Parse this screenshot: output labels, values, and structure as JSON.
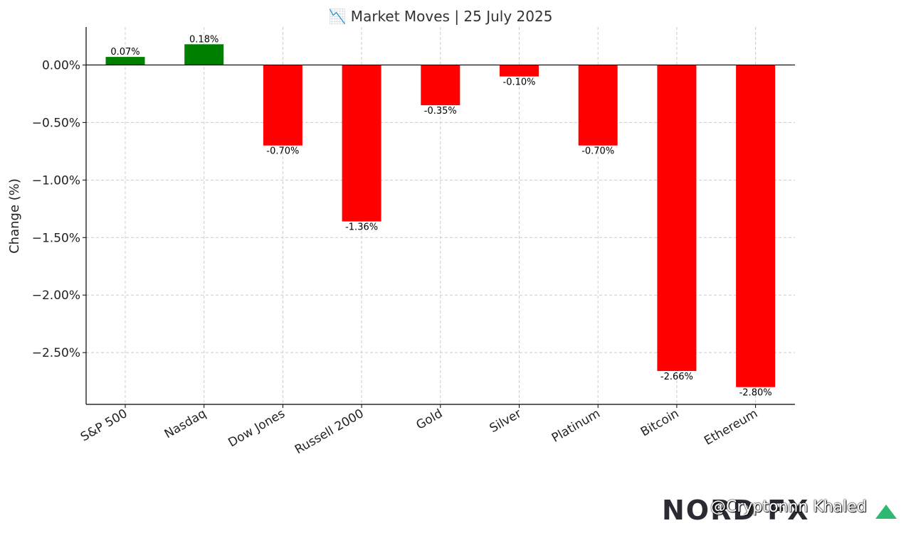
{
  "chart_data": {
    "type": "bar",
    "title": "📉 Market Moves | 25 July 2025",
    "xlabel": "",
    "ylabel": "Change (%)",
    "categories": [
      "S&P 500",
      "Nasdaq",
      "Dow Jones",
      "Russell 2000",
      "Gold",
      "Silver",
      "Platinum",
      "Bitcoin",
      "Ethereum"
    ],
    "values": [
      0.07,
      0.18,
      -0.7,
      -1.36,
      -0.35,
      -0.1,
      -0.7,
      -2.66,
      -2.8
    ],
    "data_labels": [
      "0.07%",
      "0.18%",
      "-0.70%",
      "-1.36%",
      "-0.35%",
      "-0.10%",
      "-0.70%",
      "-2.66%",
      "-2.80%"
    ],
    "yticks": [
      0.0,
      -0.5,
      -1.0,
      -1.5,
      -2.0,
      -2.5
    ],
    "ytick_labels": [
      "0.00%",
      "−0.50%",
      "−1.00%",
      "−1.50%",
      "−2.00%",
      "−2.50%"
    ],
    "ylim": [
      -2.95,
      0.33
    ],
    "grid": true,
    "colors": {
      "positive": "#008000",
      "negative": "#ff0000",
      "zero_line": "#000000",
      "grid": "#cccccc",
      "text": "#333333"
    }
  },
  "branding": {
    "logo_text": "NORD FX",
    "overlay_text": "@Cryptonnn Khaled"
  }
}
